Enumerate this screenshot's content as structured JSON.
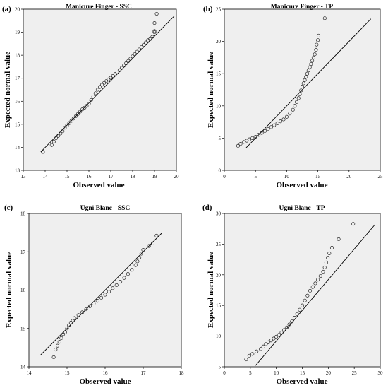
{
  "chart_data": [
    {
      "type": "scatter",
      "panel": "(a)",
      "title": "Manicure Finger - SSC",
      "xlabel": "Observed value",
      "ylabel": "Expected normal value",
      "xlim": [
        13,
        20
      ],
      "ylim": [
        13,
        20
      ],
      "xticks": [
        13,
        14,
        15,
        16,
        17,
        18,
        19,
        20
      ],
      "yticks": [
        13,
        14,
        15,
        16,
        17,
        18,
        19,
        20
      ],
      "reference_line": [
        [
          13.8,
          13.8
        ],
        [
          19.9,
          19.7
        ]
      ],
      "points": [
        [
          13.9,
          13.8
        ],
        [
          14.3,
          14.1
        ],
        [
          14.4,
          14.25
        ],
        [
          14.5,
          14.4
        ],
        [
          14.6,
          14.5
        ],
        [
          14.7,
          14.6
        ],
        [
          14.8,
          14.7
        ],
        [
          14.9,
          14.85
        ],
        [
          15.0,
          14.95
        ],
        [
          15.1,
          15.05
        ],
        [
          15.2,
          15.15
        ],
        [
          15.3,
          15.25
        ],
        [
          15.4,
          15.35
        ],
        [
          15.5,
          15.45
        ],
        [
          15.6,
          15.55
        ],
        [
          15.7,
          15.65
        ],
        [
          15.8,
          15.72
        ],
        [
          15.9,
          15.8
        ],
        [
          16.0,
          15.9
        ],
        [
          16.1,
          16.05
        ],
        [
          16.2,
          16.2
        ],
        [
          16.3,
          16.35
        ],
        [
          16.4,
          16.5
        ],
        [
          16.5,
          16.62
        ],
        [
          16.6,
          16.72
        ],
        [
          16.7,
          16.8
        ],
        [
          16.8,
          16.88
        ],
        [
          16.9,
          16.95
        ],
        [
          17.0,
          17.02
        ],
        [
          17.1,
          17.1
        ],
        [
          17.2,
          17.18
        ],
        [
          17.3,
          17.25
        ],
        [
          17.4,
          17.35
        ],
        [
          17.5,
          17.45
        ],
        [
          17.6,
          17.55
        ],
        [
          17.7,
          17.65
        ],
        [
          17.8,
          17.75
        ],
        [
          17.9,
          17.85
        ],
        [
          18.0,
          17.95
        ],
        [
          18.1,
          18.05
        ],
        [
          18.2,
          18.15
        ],
        [
          18.3,
          18.25
        ],
        [
          18.4,
          18.35
        ],
        [
          18.5,
          18.45
        ],
        [
          18.6,
          18.55
        ],
        [
          18.7,
          18.65
        ],
        [
          18.8,
          18.7
        ],
        [
          18.9,
          18.8
        ],
        [
          19.0,
          19.0
        ],
        [
          19.0,
          19.05
        ],
        [
          19.0,
          19.4
        ],
        [
          19.1,
          19.8
        ]
      ]
    },
    {
      "type": "scatter",
      "panel": "(b)",
      "title": "Manicure Finger - TP",
      "xlabel": "Observed value",
      "ylabel": "Expected normal value",
      "xlim": [
        0,
        25
      ],
      "ylim": [
        0,
        25
      ],
      "xticks": [
        0,
        5,
        10,
        15,
        20,
        25
      ],
      "yticks": [
        0,
        5,
        10,
        15,
        20,
        25
      ],
      "reference_line": [
        [
          3.5,
          3.5
        ],
        [
          23.5,
          23.5
        ]
      ],
      "points": [
        [
          2.2,
          3.8
        ],
        [
          2.6,
          4.1
        ],
        [
          3.1,
          4.4
        ],
        [
          3.6,
          4.6
        ],
        [
          4.0,
          4.8
        ],
        [
          4.5,
          5.0
        ],
        [
          5.0,
          5.2
        ],
        [
          5.5,
          5.5
        ],
        [
          6.0,
          5.8
        ],
        [
          6.5,
          6.1
        ],
        [
          7.0,
          6.4
        ],
        [
          7.5,
          6.7
        ],
        [
          8.0,
          7.0
        ],
        [
          8.5,
          7.3
        ],
        [
          9.0,
          7.6
        ],
        [
          9.5,
          7.9
        ],
        [
          10.0,
          8.3
        ],
        [
          10.5,
          8.8
        ],
        [
          11.0,
          9.4
        ],
        [
          11.3,
          10.0
        ],
        [
          11.6,
          10.6
        ],
        [
          11.9,
          11.2
        ],
        [
          12.1,
          11.8
        ],
        [
          12.3,
          12.4
        ],
        [
          12.5,
          13.0
        ],
        [
          12.7,
          13.5
        ],
        [
          12.9,
          14.0
        ],
        [
          13.1,
          14.5
        ],
        [
          13.3,
          15.0
        ],
        [
          13.5,
          15.5
        ],
        [
          13.7,
          16.0
        ],
        [
          13.9,
          16.5
        ],
        [
          14.1,
          17.0
        ],
        [
          14.3,
          17.5
        ],
        [
          14.5,
          18.0
        ],
        [
          14.7,
          18.7
        ],
        [
          14.8,
          19.5
        ],
        [
          15.0,
          20.2
        ],
        [
          15.1,
          20.9
        ],
        [
          16.1,
          23.6
        ]
      ]
    },
    {
      "type": "scatter",
      "panel": "(c)",
      "title": "Ugni Blanc - SSC",
      "xlabel": "Observed value",
      "ylabel": "Expected normal value",
      "xlim": [
        14,
        18
      ],
      "ylim": [
        14,
        18
      ],
      "xticks": [
        14,
        15,
        16,
        17,
        18
      ],
      "yticks": [
        14,
        15,
        16,
        17,
        18
      ],
      "reference_line": [
        [
          14.3,
          14.3
        ],
        [
          17.5,
          17.5
        ]
      ],
      "points": [
        [
          14.65,
          14.25
        ],
        [
          14.7,
          14.45
        ],
        [
          14.75,
          14.55
        ],
        [
          14.8,
          14.65
        ],
        [
          14.85,
          14.75
        ],
        [
          14.9,
          14.85
        ],
        [
          14.95,
          14.9
        ],
        [
          15.0,
          15.0
        ],
        [
          15.05,
          15.08
        ],
        [
          15.1,
          15.15
        ],
        [
          15.15,
          15.2
        ],
        [
          15.2,
          15.27
        ],
        [
          15.3,
          15.35
        ],
        [
          15.4,
          15.42
        ],
        [
          15.5,
          15.5
        ],
        [
          15.6,
          15.58
        ],
        [
          15.7,
          15.65
        ],
        [
          15.8,
          15.72
        ],
        [
          15.9,
          15.8
        ],
        [
          16.0,
          15.88
        ],
        [
          16.1,
          15.96
        ],
        [
          16.2,
          16.05
        ],
        [
          16.3,
          16.13
        ],
        [
          16.4,
          16.22
        ],
        [
          16.5,
          16.32
        ],
        [
          16.6,
          16.42
        ],
        [
          16.7,
          16.53
        ],
        [
          16.8,
          16.65
        ],
        [
          16.85,
          16.75
        ],
        [
          16.9,
          16.85
        ],
        [
          16.95,
          16.95
        ],
        [
          17.0,
          17.05
        ],
        [
          17.15,
          17.15
        ],
        [
          17.25,
          17.22
        ],
        [
          17.35,
          17.42
        ]
      ]
    },
    {
      "type": "scatter",
      "panel": "(d)",
      "title": "Ugni Blanc - TP",
      "xlabel": "Observed value",
      "ylabel": "Expected normal value",
      "xlim": [
        0,
        30
      ],
      "ylim": [
        5,
        30
      ],
      "xticks": [
        0,
        5,
        10,
        15,
        20,
        25,
        30
      ],
      "yticks": [
        5,
        10,
        15,
        20,
        25,
        30
      ],
      "reference_line": [
        [
          6.0,
          5.2
        ],
        [
          29.0,
          28.2
        ]
      ],
      "points": [
        [
          4.2,
          6.2
        ],
        [
          4.8,
          6.8
        ],
        [
          5.4,
          7.1
        ],
        [
          6.2,
          7.5
        ],
        [
          7.0,
          7.9
        ],
        [
          7.5,
          8.3
        ],
        [
          8.0,
          8.7
        ],
        [
          8.5,
          9.0
        ],
        [
          9.0,
          9.3
        ],
        [
          9.5,
          9.6
        ],
        [
          10.0,
          9.9
        ],
        [
          10.5,
          10.2
        ],
        [
          11.0,
          10.6
        ],
        [
          11.5,
          11.0
        ],
        [
          12.0,
          11.4
        ],
        [
          12.5,
          11.9
        ],
        [
          13.0,
          12.4
        ],
        [
          13.5,
          13.0
        ],
        [
          14.0,
          13.6
        ],
        [
          14.5,
          14.3
        ],
        [
          15.0,
          15.0
        ],
        [
          15.5,
          15.8
        ],
        [
          16.0,
          16.6
        ],
        [
          16.5,
          17.4
        ],
        [
          17.0,
          18.0
        ],
        [
          17.5,
          18.6
        ],
        [
          18.0,
          19.2
        ],
        [
          18.5,
          19.8
        ],
        [
          19.0,
          20.5
        ],
        [
          19.3,
          21.2
        ],
        [
          19.6,
          22.0
        ],
        [
          19.9,
          22.8
        ],
        [
          20.2,
          23.5
        ],
        [
          20.7,
          24.4
        ],
        [
          22.0,
          25.8
        ],
        [
          24.8,
          28.3
        ]
      ]
    }
  ]
}
